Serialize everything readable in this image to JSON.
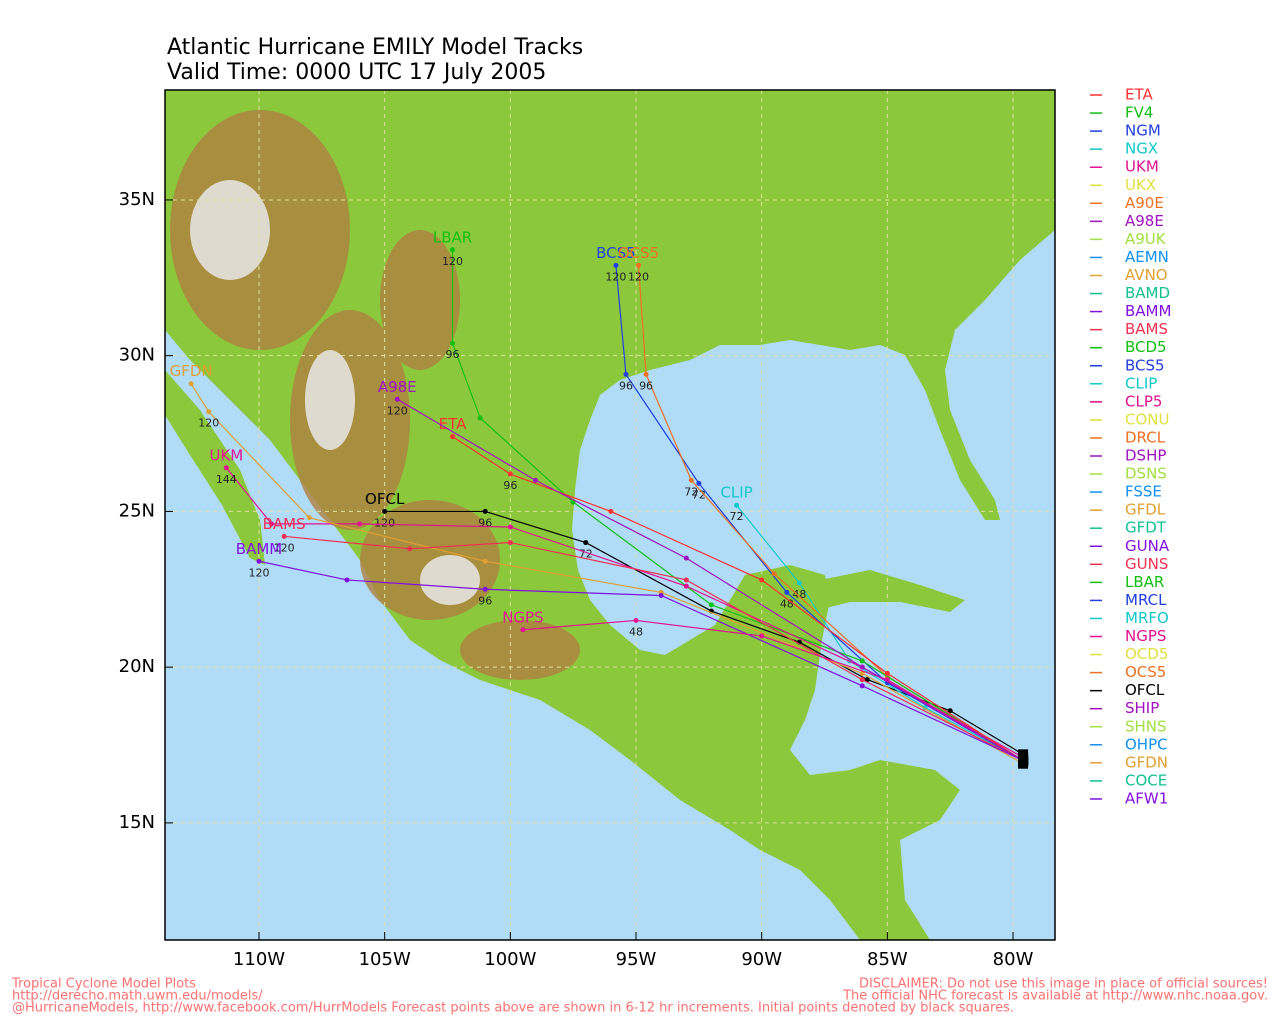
{
  "map": {
    "title": [
      "Atlantic Hurricane EMILY Model Tracks",
      "Valid Time: 0000 UTC 17 July 2005"
    ],
    "lonlim": [
      -113.74,
      -78.33
    ],
    "latlim": [
      11.24,
      38.53
    ],
    "xticks": [
      {
        "value": -110,
        "label": "110W"
      },
      {
        "value": -105,
        "label": "105W"
      },
      {
        "value": -100,
        "label": "100W"
      },
      {
        "value": -95,
        "label": "95W"
      },
      {
        "value": -90,
        "label": "90W"
      },
      {
        "value": -85,
        "label": "85W"
      },
      {
        "value": -80,
        "label": "80W"
      }
    ],
    "yticks": [
      {
        "value": 15,
        "label": "15N"
      },
      {
        "value": 20,
        "label": "20N"
      },
      {
        "value": 25,
        "label": "25N"
      },
      {
        "value": 30,
        "label": "30N"
      },
      {
        "value": 35,
        "label": "35N"
      }
    ],
    "grid": true,
    "legend": [
      {
        "name": "ETA",
        "color": "#ff3030"
      },
      {
        "name": "FV4",
        "color": "#10c010"
      },
      {
        "name": "NGM",
        "color": "#2040e0"
      },
      {
        "name": "NGX",
        "color": "#10c8c8"
      },
      {
        "name": "UKM",
        "color": "#e01090"
      },
      {
        "name": "UKX",
        "color": "#e0e040"
      },
      {
        "name": "A90E",
        "color": "#f07020"
      },
      {
        "name": "A98E",
        "color": "#a010c0"
      },
      {
        "name": "A9UK",
        "color": "#a0e040"
      },
      {
        "name": "AEMN",
        "color": "#1090f0"
      },
      {
        "name": "AVNO",
        "color": "#e0a030"
      },
      {
        "name": "BAMD",
        "color": "#10c090"
      },
      {
        "name": "BAMM",
        "color": "#8010e0"
      },
      {
        "name": "BAMS",
        "color": "#f03050"
      },
      {
        "name": "BCD5",
        "color": "#10c010"
      },
      {
        "name": "BCS5",
        "color": "#2040e0"
      },
      {
        "name": "CLIP",
        "color": "#10c8c8"
      },
      {
        "name": "CLP5",
        "color": "#e01090"
      },
      {
        "name": "CONU",
        "color": "#e0e040"
      },
      {
        "name": "DRCL",
        "color": "#f07020"
      },
      {
        "name": "DSHP",
        "color": "#a010c0"
      },
      {
        "name": "DSNS",
        "color": "#a0e040"
      },
      {
        "name": "FSSE",
        "color": "#1090f0"
      },
      {
        "name": "GFDL",
        "color": "#e0a030"
      },
      {
        "name": "GFDT",
        "color": "#10c090"
      },
      {
        "name": "GUNA",
        "color": "#8010e0"
      },
      {
        "name": "GUNS",
        "color": "#f03050"
      },
      {
        "name": "LBAR",
        "color": "#10c010"
      },
      {
        "name": "MRCL",
        "color": "#2040e0"
      },
      {
        "name": "MRFO",
        "color": "#10c8c8"
      },
      {
        "name": "NGPS",
        "color": "#e01090"
      },
      {
        "name": "OCD5",
        "color": "#e0e040"
      },
      {
        "name": "OCS5",
        "color": "#f07020"
      },
      {
        "name": "OFCL",
        "color": "#000000"
      },
      {
        "name": "SHIP",
        "color": "#a010c0"
      },
      {
        "name": "SHNS",
        "color": "#a0e040"
      },
      {
        "name": "OHPC",
        "color": "#1090f0"
      },
      {
        "name": "GFDN",
        "color": "#e0a030"
      },
      {
        "name": "COCE",
        "color": "#10c090"
      },
      {
        "name": "AFW1",
        "color": "#8010e0"
      }
    ],
    "tracks": [
      {
        "name": "OFCL",
        "color": "#000000",
        "lon": [
          -79.6,
          -82.5,
          -85.8,
          -88.5,
          -92.0,
          -97.0,
          -101.0,
          -105.0
        ],
        "lat": [
          17.2,
          18.6,
          19.6,
          20.8,
          21.8,
          24.0,
          25.0,
          25.0
        ],
        "hours": [
          null,
          null,
          null,
          null,
          null,
          "72",
          "96",
          "120"
        ]
      },
      {
        "name": "CLIP",
        "color": "#10c8c8",
        "lon": [
          -79.6,
          -83.5,
          -86.5,
          -88.5,
          -91.0
        ],
        "lat": [
          17.0,
          18.7,
          20.2,
          22.7,
          25.2
        ],
        "hours": [
          null,
          null,
          null,
          "48",
          "72"
        ]
      },
      {
        "name": "BCS5",
        "color": "#2040e0",
        "lon": [
          -79.6,
          -85.0,
          -89.0,
          -92.5,
          -95.4,
          -95.8
        ],
        "lat": [
          17.0,
          19.5,
          22.4,
          25.9,
          29.4,
          32.9
        ],
        "hours": [
          null,
          null,
          "48",
          "72",
          "96",
          "120"
        ]
      },
      {
        "name": "OCS5",
        "color": "#f07020",
        "lon": [
          -79.6,
          -85.0,
          -89.5,
          -92.8,
          -94.6,
          -94.9
        ],
        "lat": [
          17.0,
          19.7,
          23.0,
          26.0,
          29.4,
          32.9
        ],
        "hours": [
          null,
          null,
          null,
          "72",
          "96",
          "120"
        ]
      },
      {
        "name": "LBAR",
        "color": "#10c010",
        "lon": [
          -79.6,
          -86.0,
          -92.0,
          -97.5,
          -101.2,
          -102.3,
          -102.3
        ],
        "lat": [
          17.0,
          20.2,
          22.0,
          25.3,
          28.0,
          30.4,
          33.4
        ],
        "hours": [
          null,
          null,
          null,
          null,
          null,
          "96",
          "120"
        ]
      },
      {
        "name": "UKM",
        "color": "#e01090",
        "lon": [
          -79.6,
          -86.0,
          -93.0,
          -100.0,
          -106.0,
          -109.5,
          -111.3
        ],
        "lat": [
          17.1,
          20.0,
          22.6,
          24.5,
          24.6,
          24.6,
          26.4
        ],
        "hours": [
          null,
          null,
          null,
          null,
          null,
          null,
          "144"
        ]
      },
      {
        "name": "GFDN",
        "color": "#e0a030",
        "lon": [
          -79.6,
          -86.0,
          -94.0,
          -101.0,
          -108.0,
          -112.0,
          -112.7
        ],
        "lat": [
          16.9,
          19.8,
          22.4,
          23.4,
          24.8,
          28.2,
          29.1
        ],
        "hours": [
          null,
          null,
          null,
          null,
          null,
          "120",
          null
        ]
      },
      {
        "name": "BAMS",
        "color": "#f03050",
        "lon": [
          -79.6,
          -86.0,
          -93.0,
          -100.0,
          -104.0,
          -109.0
        ],
        "lat": [
          17.0,
          19.6,
          22.8,
          24.0,
          23.8,
          24.2
        ],
        "hours": [
          null,
          null,
          null,
          null,
          null,
          "120"
        ]
      },
      {
        "name": "BAMM",
        "color": "#8010e0",
        "lon": [
          -79.6,
          -86.0,
          -94.0,
          -101.0,
          -106.5,
          -110.0
        ],
        "lat": [
          17.0,
          19.4,
          22.3,
          22.5,
          22.8,
          23.4
        ],
        "hours": [
          null,
          null,
          null,
          "96",
          null,
          "120"
        ]
      },
      {
        "name": "NGPS",
        "color": "#e01090",
        "lon": [
          -79.6,
          -85.0,
          -90.0,
          -95.0,
          -99.5
        ],
        "lat": [
          17.0,
          19.6,
          21.0,
          21.5,
          21.2
        ],
        "hours": [
          null,
          null,
          null,
          "48",
          null
        ]
      },
      {
        "name": "ETA",
        "color": "#ff3030",
        "lon": [
          -79.6,
          -85.0,
          -90.0,
          -96.0,
          -100.0,
          -102.3
        ],
        "lat": [
          17.0,
          19.8,
          22.8,
          25.0,
          26.2,
          27.4
        ],
        "hours": [
          null,
          null,
          null,
          null,
          "96",
          null
        ]
      },
      {
        "name": "A98E",
        "color": "#a010c0",
        "lon": [
          -79.6,
          -86.0,
          -93.0,
          -99.0,
          -104.5
        ],
        "lat": [
          17.0,
          20.0,
          23.5,
          26.0,
          28.6
        ],
        "hours": [
          null,
          null,
          null,
          null,
          "120"
        ]
      }
    ],
    "footer_left": [
      "Tropical Cyclone Model Plots",
      "http://derecho.math.uwm.edu/models/",
      "@HurricaneModels, http://www.facebook.com/HurrModels  Forecast points above are shown in 6-12 hr increments. Initial points denoted by black squares."
    ],
    "footer_right": [
      "DISCLAIMER: Do not use this image in place of official sources!",
      "The official NHC forecast is available at http://www.nhc.noaa.gov."
    ]
  }
}
